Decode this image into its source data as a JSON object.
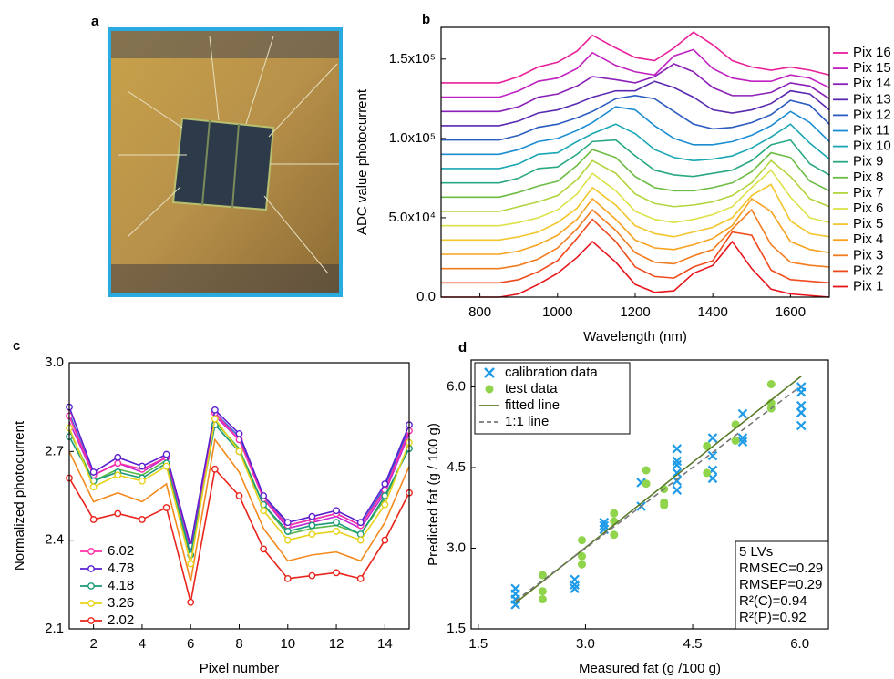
{
  "photo": {
    "label": "a"
  },
  "chart_data": [
    {
      "type": "line",
      "panel_label": "b",
      "xlabel": "Wavelength (nm)",
      "ylabel": "ADC value photocurrent",
      "x": [
        700,
        800,
        850,
        900,
        950,
        1000,
        1050,
        1090,
        1150,
        1200,
        1250,
        1300,
        1350,
        1400,
        1450,
        1500,
        1550,
        1600,
        1650,
        1700
      ],
      "xlim": [
        700,
        1700
      ],
      "xticks": [
        800,
        1000,
        1200,
        1400,
        1600
      ],
      "ylim": [
        0,
        170000
      ],
      "yticks": [
        {
          "value": 0,
          "label": "0.0"
        },
        {
          "value": 50000,
          "label": "5.0x10⁴"
        },
        {
          "value": 100000,
          "label": "1.0x10⁵"
        },
        {
          "value": 150000,
          "label": "1.5x10⁵"
        }
      ],
      "legend": "right",
      "series": [
        {
          "name": "Pix 1",
          "color": "#e8141c",
          "values": [
            0,
            0,
            0,
            2000,
            8000,
            15000,
            25000,
            35000,
            22000,
            8000,
            3000,
            4000,
            15000,
            20000,
            35000,
            18000,
            5000,
            2000,
            1000,
            0
          ]
        },
        {
          "name": "Pix 2",
          "color": "#f04a1c",
          "values": [
            9000,
            9000,
            9000,
            11000,
            16000,
            23000,
            37000,
            49000,
            35000,
            19000,
            13000,
            12000,
            19000,
            23000,
            41000,
            39000,
            17000,
            11000,
            10000,
            9000
          ]
        },
        {
          "name": "Pix 3",
          "color": "#f27c20",
          "values": [
            18000,
            18000,
            18000,
            20000,
            24000,
            31000,
            43000,
            55000,
            42000,
            28000,
            22000,
            21000,
            26000,
            30000,
            43000,
            55000,
            33000,
            22000,
            20000,
            19000
          ]
        },
        {
          "name": "Pix 4",
          "color": "#f6a21e",
          "values": [
            27000,
            27000,
            27000,
            29000,
            33000,
            39000,
            49000,
            62000,
            49000,
            36000,
            31000,
            30000,
            33000,
            37000,
            45000,
            62000,
            54000,
            35000,
            30000,
            28000
          ]
        },
        {
          "name": "Pix 5",
          "color": "#f2c62c",
          "values": [
            36000,
            36000,
            36000,
            38000,
            41000,
            47000,
            56000,
            69000,
            58000,
            45000,
            40000,
            38000,
            41000,
            44000,
            50000,
            64000,
            71000,
            48000,
            40000,
            38000
          ]
        },
        {
          "name": "Pix 6",
          "color": "#dde24a",
          "values": [
            45000,
            45000,
            45000,
            47000,
            50000,
            55000,
            65000,
            78000,
            67000,
            54000,
            49000,
            47000,
            49000,
            52000,
            57000,
            69000,
            80000,
            63000,
            50000,
            47000
          ]
        },
        {
          "name": "Pix 7",
          "color": "#b2d43c",
          "values": [
            54000,
            54000,
            54000,
            57000,
            60000,
            64000,
            74000,
            86000,
            78000,
            65000,
            59000,
            57000,
            58000,
            60000,
            64000,
            72000,
            86000,
            76000,
            62000,
            57000
          ]
        },
        {
          "name": "Pix 8",
          "color": "#6cbc44",
          "values": [
            63000,
            63000,
            63000,
            66000,
            70000,
            73000,
            83000,
            93000,
            88000,
            76000,
            69000,
            67000,
            67000,
            69000,
            72000,
            79000,
            91000,
            88000,
            73000,
            67000
          ]
        },
        {
          "name": "Pix 9",
          "color": "#2aa884",
          "values": [
            72000,
            72000,
            72000,
            75000,
            81000,
            82000,
            90000,
            98000,
            99000,
            89000,
            80000,
            77000,
            76000,
            78000,
            80000,
            86000,
            96000,
            99000,
            84000,
            77000
          ]
        },
        {
          "name": "Pix 10",
          "color": "#1aa6b4",
          "values": [
            81000,
            81000,
            81000,
            84000,
            90000,
            91000,
            98000,
            103000,
            109000,
            103000,
            93000,
            88000,
            86000,
            87000,
            89000,
            94000,
            101000,
            109000,
            97000,
            87000
          ]
        },
        {
          "name": "Pix 11",
          "color": "#1a8cd2",
          "values": [
            90000,
            90000,
            90000,
            93000,
            98000,
            100000,
            105000,
            110000,
            120000,
            118000,
            108000,
            100000,
            96000,
            96000,
            98000,
            102000,
            108000,
            117000,
            110000,
            98000
          ]
        },
        {
          "name": "Pix 12",
          "color": "#2a5cc0",
          "values": [
            99000,
            99000,
            99000,
            102000,
            107000,
            109000,
            113000,
            117000,
            125000,
            127000,
            125000,
            117000,
            109000,
            106000,
            107000,
            110000,
            115000,
            124000,
            121000,
            109000
          ]
        },
        {
          "name": "Pix 13",
          "color": "#5a2ab0",
          "values": [
            108000,
            108000,
            108000,
            111000,
            116000,
            118000,
            122000,
            126000,
            130000,
            130000,
            136000,
            132000,
            126000,
            118000,
            116000,
            118000,
            122000,
            130000,
            128000,
            118000
          ]
        },
        {
          "name": "Pix 14",
          "color": "#8a1fb8",
          "values": [
            117000,
            117000,
            117000,
            120000,
            126000,
            128000,
            133000,
            139000,
            137000,
            135000,
            139000,
            147000,
            142000,
            132000,
            127000,
            127000,
            129000,
            135000,
            133000,
            125000
          ]
        },
        {
          "name": "Pix 15",
          "color": "#c020c0",
          "values": [
            126000,
            126000,
            126000,
            130000,
            136000,
            138000,
            144000,
            154000,
            146000,
            142000,
            140000,
            152000,
            156000,
            144000,
            138000,
            136000,
            136000,
            140000,
            138000,
            132000
          ]
        },
        {
          "name": "Pix 16",
          "color": "#e8209a",
          "values": [
            135000,
            135000,
            135000,
            139000,
            145000,
            148000,
            155000,
            165000,
            157000,
            151000,
            149000,
            157000,
            167000,
            159000,
            149000,
            145000,
            143000,
            145000,
            143000,
            140000
          ]
        }
      ]
    },
    {
      "type": "line",
      "panel_label": "c",
      "xlabel": "Pixel number",
      "ylabel": "Normalized photocurrent",
      "x": [
        1,
        2,
        3,
        4,
        5,
        6,
        7,
        8,
        9,
        10,
        11,
        12,
        13,
        14,
        15
      ],
      "xlim": [
        1,
        15
      ],
      "xticks": [
        2,
        4,
        6,
        8,
        10,
        12,
        14
      ],
      "ylim": [
        2.1,
        3
      ],
      "yticks": [
        2.1,
        2.4,
        2.7,
        {
          "value": 3,
          "label": "3.0"
        }
      ],
      "legend": "lower left",
      "series": [
        {
          "color": "#f28a1e",
          "values": [
            2.7,
            2.53,
            2.56,
            2.53,
            2.59,
            2.26,
            2.74,
            2.63,
            2.44,
            2.33,
            2.35,
            2.36,
            2.33,
            2.46,
            2.65
          ]
        },
        {
          "color": "#58b84a",
          "values": [
            2.77,
            2.6,
            2.64,
            2.62,
            2.67,
            2.34,
            2.8,
            2.71,
            2.52,
            2.42,
            2.44,
            2.45,
            2.42,
            2.54,
            2.72
          ]
        },
        {
          "color": "#2a6ad8",
          "values": [
            2.83,
            2.62,
            2.66,
            2.64,
            2.68,
            2.37,
            2.83,
            2.75,
            2.55,
            2.45,
            2.47,
            2.49,
            2.45,
            2.58,
            2.78
          ]
        },
        {
          "color": "#c02ad0",
          "values": [
            2.8,
            2.62,
            2.66,
            2.63,
            2.68,
            2.37,
            2.82,
            2.74,
            2.54,
            2.44,
            2.46,
            2.48,
            2.44,
            2.56,
            2.76
          ]
        },
        {
          "name": "6.02",
          "color": "#ff2fa8",
          "marker": "circle",
          "values": [
            2.82,
            2.62,
            2.66,
            2.64,
            2.68,
            2.38,
            2.83,
            2.74,
            2.54,
            2.45,
            2.47,
            2.49,
            2.45,
            2.57,
            2.77
          ]
        },
        {
          "name": "4.78",
          "color": "#5a1fd0",
          "marker": "circle",
          "values": [
            2.85,
            2.63,
            2.68,
            2.65,
            2.69,
            2.38,
            2.84,
            2.76,
            2.55,
            2.46,
            2.48,
            2.5,
            2.46,
            2.59,
            2.79
          ]
        },
        {
          "name": "4.18",
          "color": "#1a9a7a",
          "marker": "circle",
          "values": [
            2.75,
            2.6,
            2.63,
            2.61,
            2.66,
            2.35,
            2.79,
            2.7,
            2.52,
            2.43,
            2.45,
            2.46,
            2.42,
            2.55,
            2.71
          ]
        },
        {
          "name": "3.26",
          "color": "#e6d21a",
          "marker": "circle",
          "values": [
            2.78,
            2.58,
            2.62,
            2.6,
            2.65,
            2.32,
            2.81,
            2.7,
            2.5,
            2.4,
            2.42,
            2.43,
            2.4,
            2.52,
            2.73
          ]
        },
        {
          "name": "2.02",
          "color": "#e8241c",
          "marker": "circle",
          "values": [
            2.61,
            2.47,
            2.49,
            2.47,
            2.51,
            2.19,
            2.64,
            2.55,
            2.37,
            2.27,
            2.28,
            2.29,
            2.27,
            2.4,
            2.56
          ]
        }
      ]
    },
    {
      "type": "scatter",
      "panel_label": "d",
      "xlabel": "Measured fat (g /100 g)",
      "ylabel": "Predicted fat (g / 100 g)",
      "xlim": [
        1.4,
        6.4
      ],
      "xticks": [
        1.5,
        {
          "value": 3,
          "label": "3.0"
        },
        4.5,
        {
          "value": 6,
          "label": "6.0"
        }
      ],
      "ylim": [
        1.5,
        6.5
      ],
      "yticks": [
        1.5,
        {
          "value": 3,
          "label": "3.0"
        },
        4.5,
        {
          "value": 6,
          "label": "6.0"
        }
      ],
      "legend": "upper left",
      "annotations": [
        "5 LVs",
        "RMSEC=0.29",
        "RMSEP=0.29",
        "R²(C)=0.94",
        "R²(P)=0.92"
      ],
      "series": [
        {
          "name": "calibration data",
          "color": "#1e9be8",
          "marker": "x",
          "x": [
            2.02,
            2.02,
            2.02,
            2.02,
            2.85,
            2.85,
            2.85,
            3.26,
            3.26,
            3.26,
            3.78,
            3.78,
            4.28,
            4.28,
            4.28,
            4.28,
            4.28,
            4.28,
            4.78,
            4.78,
            4.78,
            4.78,
            5.2,
            5.2,
            5.2,
            6.02,
            6.02,
            6.02,
            6.02,
            6.02
          ],
          "values": [
            1.95,
            2.05,
            2.15,
            2.25,
            2.25,
            2.32,
            2.42,
            3.35,
            3.42,
            3.48,
            3.78,
            4.22,
            4.08,
            4.25,
            4.4,
            4.55,
            4.62,
            4.85,
            4.3,
            4.45,
            4.72,
            5.05,
            4.98,
            5.05,
            5.5,
            5.28,
            5.52,
            5.65,
            5.9,
            6.0
          ]
        },
        {
          "name": "test data",
          "color": "#8fd44a",
          "marker": "circle",
          "x": [
            2.4,
            2.4,
            2.4,
            2.95,
            2.95,
            2.95,
            3.4,
            3.4,
            3.4,
            3.85,
            3.85,
            4.1,
            4.1,
            4.1,
            4.7,
            4.7,
            5.1,
            5.1,
            5.6,
            5.6,
            5.6
          ],
          "values": [
            2.05,
            2.2,
            2.5,
            2.7,
            2.85,
            3.15,
            3.25,
            3.5,
            3.65,
            4.2,
            4.45,
            3.8,
            3.85,
            4.1,
            4.4,
            4.9,
            5.0,
            5.3,
            5.6,
            5.7,
            6.05
          ]
        },
        {
          "name": "fitted line",
          "color": "#5a7a2a",
          "style": "solid",
          "x": [
            2.02,
            6.02
          ],
          "values": [
            1.98,
            6.2
          ]
        },
        {
          "name": "1:1 line",
          "color": "#777777",
          "style": "dashed",
          "x": [
            2.02,
            6.02
          ],
          "values": [
            2.02,
            6.02
          ]
        }
      ]
    }
  ]
}
